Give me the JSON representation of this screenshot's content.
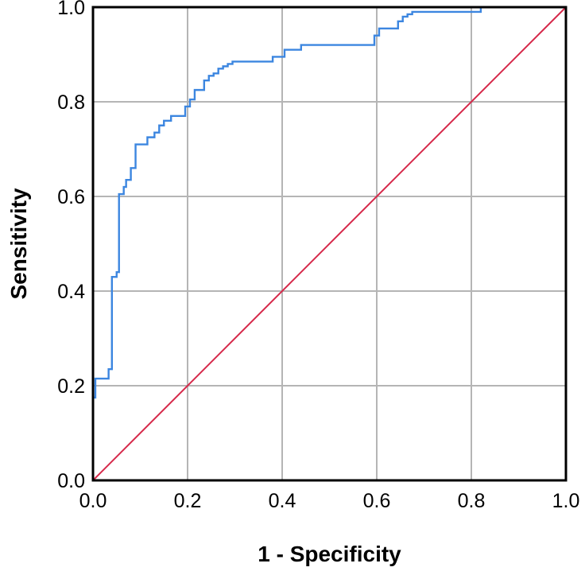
{
  "chart_data": {
    "type": "line",
    "title": "",
    "xlabel": "1 - Specificity",
    "ylabel": "Sensitivity",
    "xlim": [
      0,
      1
    ],
    "ylim": [
      0,
      1
    ],
    "grid": true,
    "x_ticks": [
      "0.0",
      "0.2",
      "0.4",
      "0.6",
      "0.8",
      "1.0"
    ],
    "y_ticks": [
      "0.0",
      "0.2",
      "0.4",
      "0.6",
      "0.8",
      "1.0"
    ],
    "colors": {
      "roc": "#3c86e0",
      "reference": "#d6284a",
      "grid": "#b5b5b5",
      "frame": "#000000"
    },
    "series": [
      {
        "color": "#3c86e0",
        "x": [
          0.0,
          0.0,
          0.005,
          0.005,
          0.033,
          0.033,
          0.04,
          0.04,
          0.05,
          0.05,
          0.055,
          0.055,
          0.065,
          0.065,
          0.07,
          0.07,
          0.08,
          0.08,
          0.09,
          0.09,
          0.115,
          0.115,
          0.13,
          0.13,
          0.14,
          0.14,
          0.15,
          0.15,
          0.165,
          0.165,
          0.195,
          0.195,
          0.205,
          0.205,
          0.215,
          0.215,
          0.235,
          0.235,
          0.245,
          0.245,
          0.255,
          0.255,
          0.265,
          0.265,
          0.275,
          0.275,
          0.285,
          0.285,
          0.295,
          0.295,
          0.38,
          0.38,
          0.405,
          0.405,
          0.44,
          0.44,
          0.595,
          0.595,
          0.605,
          0.605,
          0.645,
          0.645,
          0.655,
          0.655,
          0.665,
          0.665,
          0.675,
          0.675,
          0.82,
          0.82,
          1.0
        ],
        "y": [
          0.0,
          0.175,
          0.175,
          0.215,
          0.215,
          0.235,
          0.235,
          0.43,
          0.43,
          0.44,
          0.44,
          0.605,
          0.605,
          0.62,
          0.62,
          0.635,
          0.635,
          0.66,
          0.66,
          0.71,
          0.71,
          0.725,
          0.725,
          0.735,
          0.735,
          0.75,
          0.75,
          0.76,
          0.76,
          0.77,
          0.77,
          0.79,
          0.79,
          0.805,
          0.805,
          0.825,
          0.825,
          0.845,
          0.845,
          0.855,
          0.855,
          0.86,
          0.86,
          0.87,
          0.87,
          0.875,
          0.875,
          0.88,
          0.88,
          0.885,
          0.885,
          0.895,
          0.895,
          0.91,
          0.91,
          0.92,
          0.92,
          0.94,
          0.94,
          0.955,
          0.955,
          0.97,
          0.97,
          0.98,
          0.98,
          0.985,
          0.985,
          0.99,
          0.99,
          1.0,
          1.0
        ]
      },
      {
        "color": "#d6284a",
        "x": [
          0.0,
          1.0
        ],
        "y": [
          0.0,
          1.0
        ]
      }
    ]
  }
}
